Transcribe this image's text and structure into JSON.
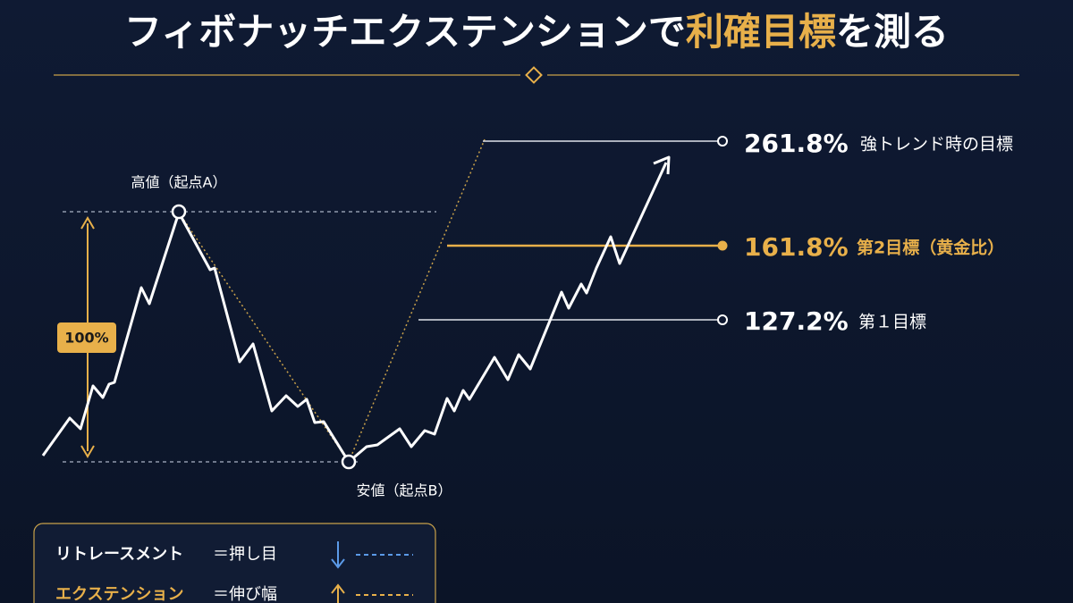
{
  "header": {
    "title_lead": "フィボナッチエクステンションで",
    "title_highlight": "利確目標",
    "title_tail": "を測る"
  },
  "chart": {
    "high_label": "高値（起点A）",
    "low_label": "安値（起点B）",
    "range_label": "100%",
    "levels": [
      {
        "ratio": "261.8%",
        "label": "強トレンド時の目標"
      },
      {
        "ratio": "161.8%",
        "label": "第2目標（黄金比）"
      },
      {
        "ratio": "127.2%",
        "label": "第１目標"
      }
    ]
  },
  "legend": [
    {
      "term": "リトレースメント",
      "meaning": "＝押し目"
    },
    {
      "term": "エクステンション",
      "meaning": "＝伸び幅"
    }
  ]
}
